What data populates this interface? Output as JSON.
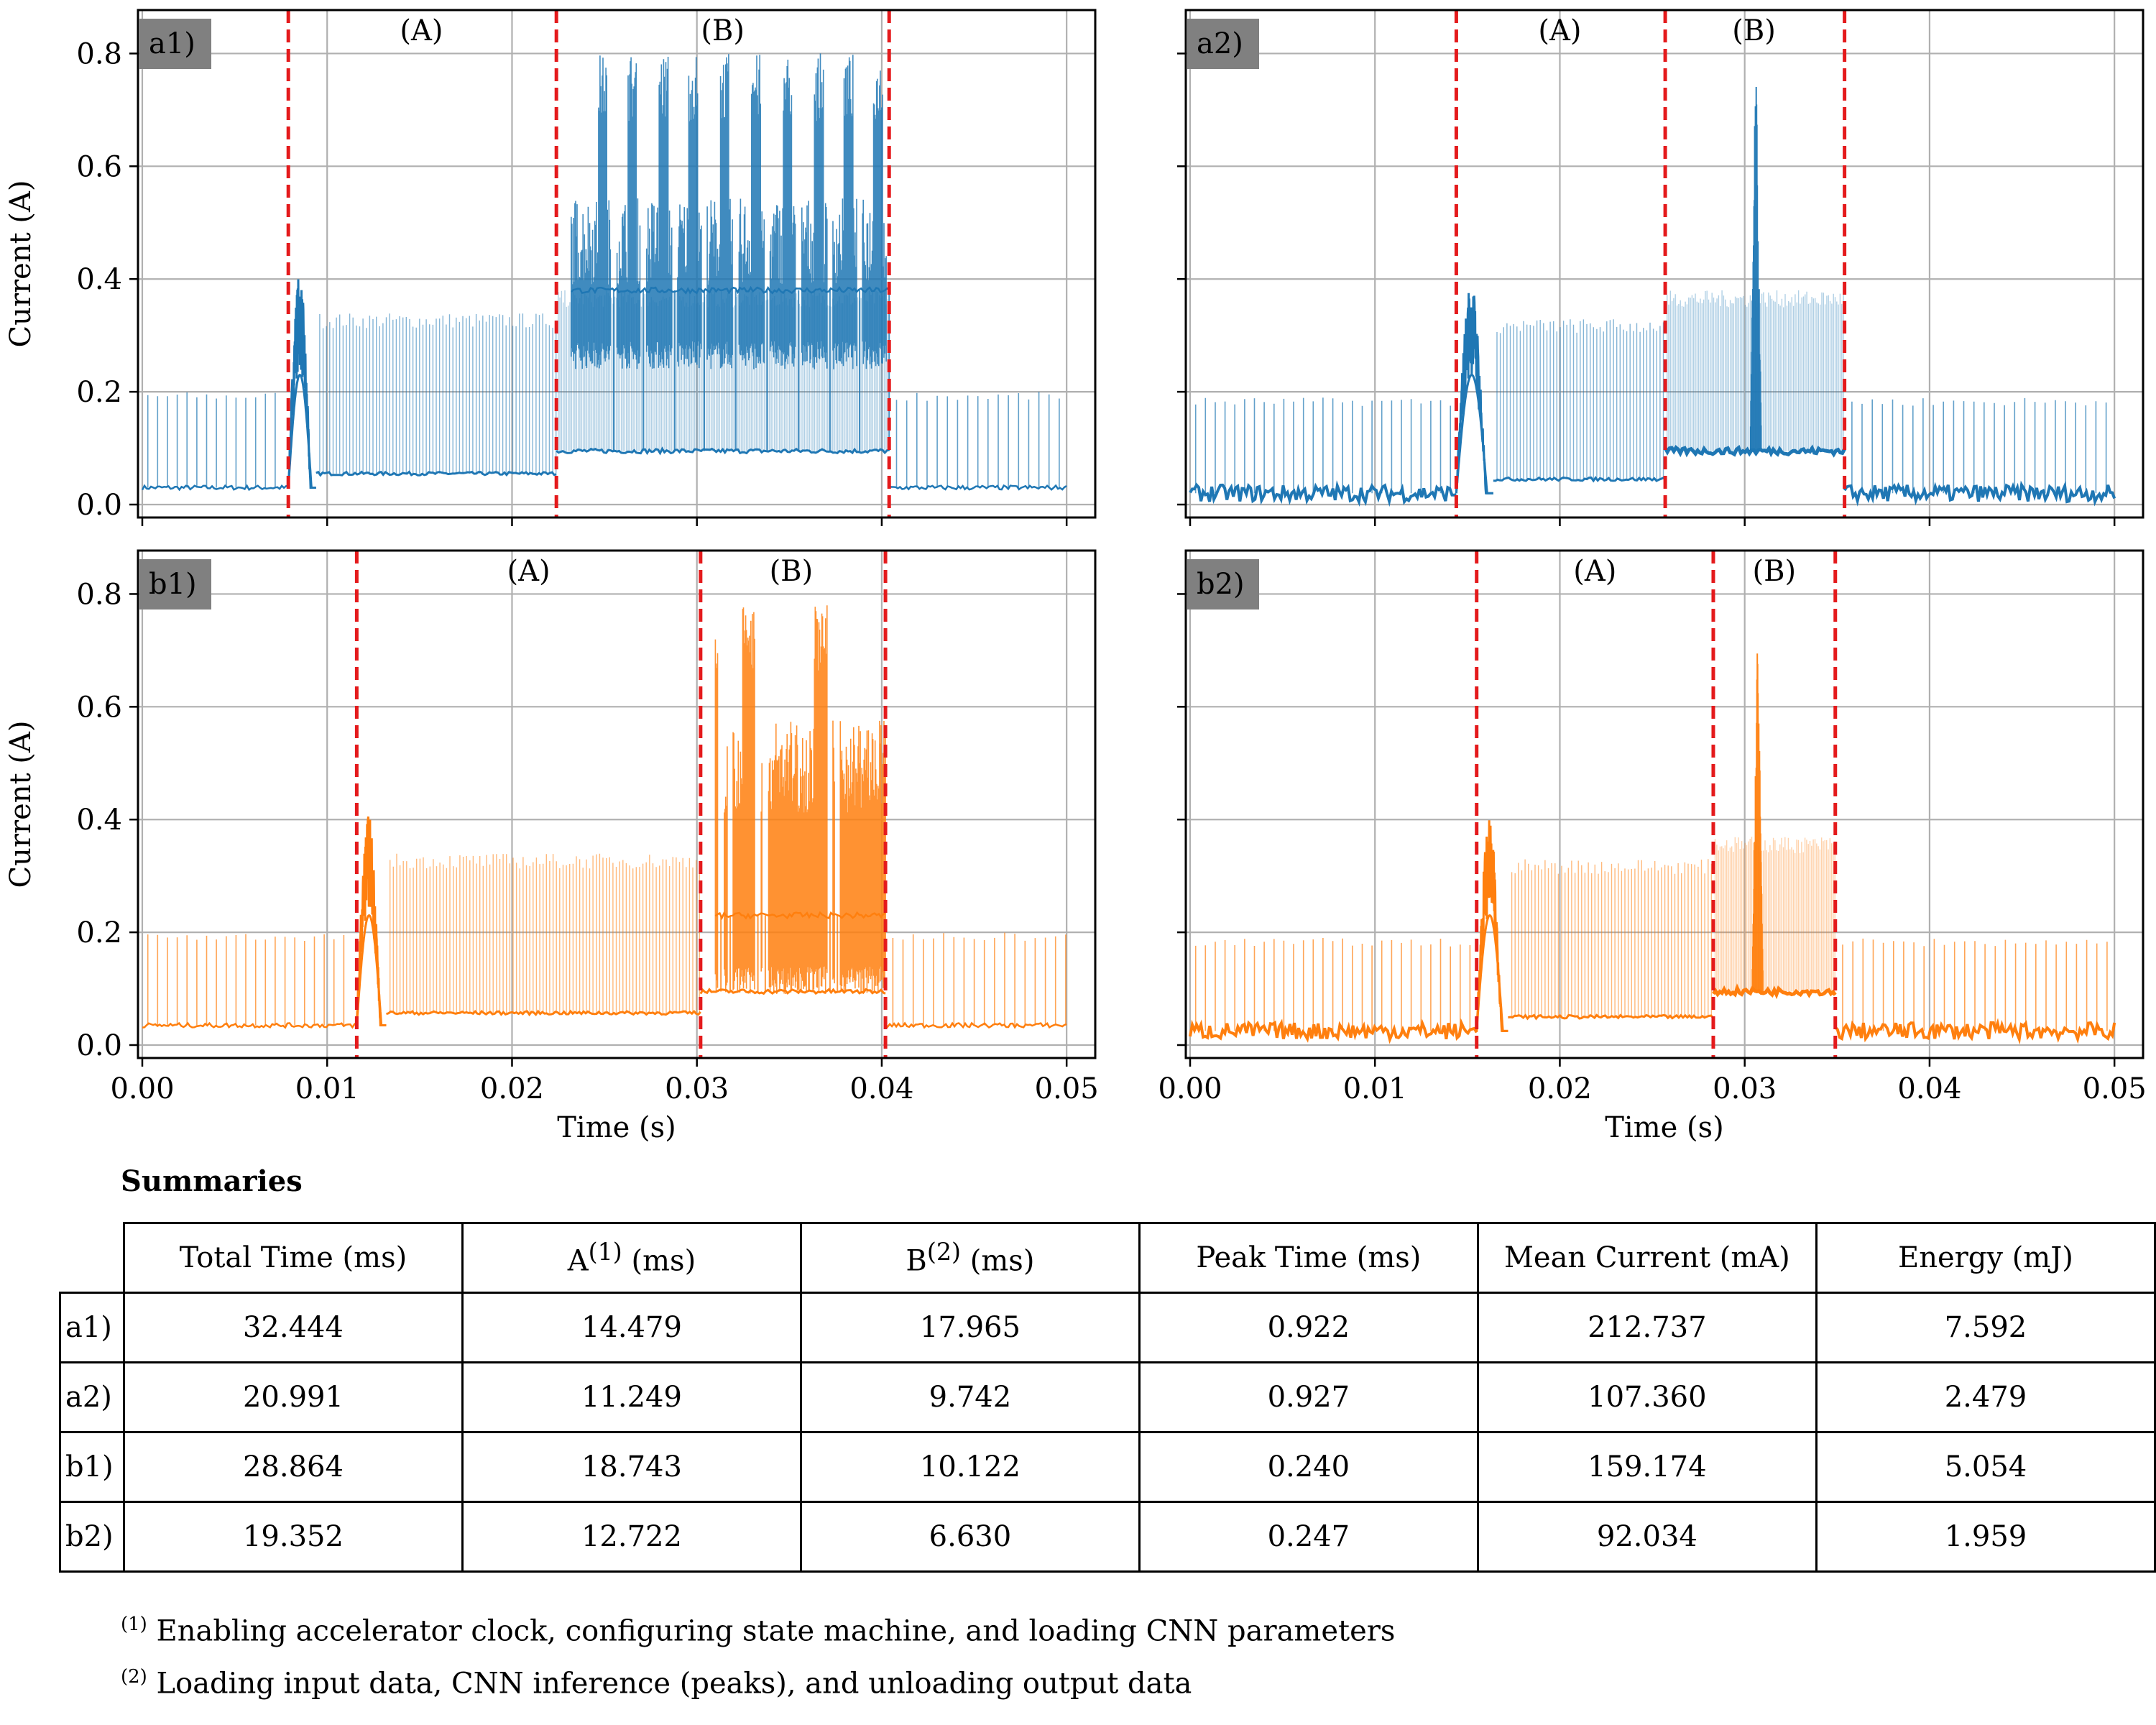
{
  "chart_data": [
    {
      "type": "line",
      "panel_label": "a1)",
      "color": "#1f77b4",
      "xlim": [
        0,
        0.05
      ],
      "ylim": [
        0,
        0.9
      ],
      "xlabel": "",
      "ylabel": "Current (A)",
      "grid": true,
      "x_ticks": [
        0.0,
        0.01,
        0.02,
        0.03,
        0.04,
        0.05
      ],
      "y_ticks": [
        0.0,
        0.2,
        0.4,
        0.6,
        0.8
      ],
      "x_tick_labels": [
        "",
        "",
        "",
        "",
        "",
        ""
      ],
      "y_tick_labels": [
        "0.0",
        "0.2",
        "0.4",
        "0.6",
        "0.8"
      ],
      "phase_boundaries": [
        0.0079,
        0.0224,
        0.0404
      ],
      "phase_labels": [
        "(A)",
        "(B)"
      ],
      "phase_label_x": [
        0.0151,
        0.0314
      ],
      "baseline": 0.03,
      "baseline_spikes": 0.2,
      "peak_time": [
        0.0079,
        0.0094
      ],
      "peak_max": 0.41,
      "a_level": 0.055,
      "a_spikes": 0.34,
      "b_style": "multi",
      "b_low": 0.095,
      "b_mid": 0.38,
      "b_burst_high": 0.52,
      "b_peak_high": 0.8,
      "b_peak_centers": [
        0.0249,
        0.0265,
        0.0282,
        0.0298,
        0.0315,
        0.0332,
        0.0349,
        0.0366,
        0.0382,
        0.0398
      ],
      "b_thin_spikes": 0.38,
      "baseline_end": 0.03
    },
    {
      "type": "line",
      "panel_label": "a2)",
      "color": "#1f77b4",
      "xlim": [
        0,
        0.05
      ],
      "ylim": [
        0,
        0.9
      ],
      "xlabel": "",
      "ylabel": "",
      "grid": true,
      "x_ticks": [
        0.0,
        0.01,
        0.02,
        0.03,
        0.04,
        0.05
      ],
      "y_ticks": [
        0.0,
        0.2,
        0.4,
        0.6,
        0.8
      ],
      "x_tick_labels": [
        "",
        "",
        "",
        "",
        "",
        ""
      ],
      "y_tick_labels": [
        "",
        "",
        "",
        "",
        "",
        ""
      ],
      "phase_boundaries": [
        0.0144,
        0.0257,
        0.0354
      ],
      "phase_labels": [
        "(A)",
        "(B)"
      ],
      "phase_label_x": [
        0.02,
        0.0305
      ],
      "baseline": 0.02,
      "baseline_spikes": 0.19,
      "peak_time": [
        0.0144,
        0.0164
      ],
      "peak_max": 0.4,
      "a_level": 0.045,
      "a_spikes": 0.33,
      "b_style": "single",
      "b_low": 0.095,
      "b_mid": 0.38,
      "b_burst_high": 0.38,
      "b_peak_high": 0.82,
      "b_peak_centers": [
        0.0306
      ],
      "b_thin_spikes": 0.38,
      "baseline_end": 0.02
    },
    {
      "type": "line",
      "panel_label": "b1)",
      "color": "#ff7f0e",
      "xlim": [
        0,
        0.05
      ],
      "ylim": [
        0,
        0.9
      ],
      "xlabel": "Time (s)",
      "ylabel": "Current (A)",
      "grid": true,
      "x_ticks": [
        0.0,
        0.01,
        0.02,
        0.03,
        0.04,
        0.05
      ],
      "y_ticks": [
        0.0,
        0.2,
        0.4,
        0.6,
        0.8
      ],
      "x_tick_labels": [
        "0.00",
        "0.01",
        "0.02",
        "0.03",
        "0.04",
        "0.05"
      ],
      "y_tick_labels": [
        "0.0",
        "0.2",
        "0.4",
        "0.6",
        "0.8"
      ],
      "phase_boundaries": [
        0.0116,
        0.0302,
        0.0402
      ],
      "phase_labels": [
        "(A)",
        "(B)"
      ],
      "phase_label_x": [
        0.0209,
        0.0351
      ],
      "baseline": 0.035,
      "baseline_spikes": 0.2,
      "peak_time": [
        0.0116,
        0.0132
      ],
      "peak_max": 0.41,
      "a_level": 0.057,
      "a_spikes": 0.34,
      "b_style": "multi",
      "b_low": 0.095,
      "b_mid": 0.23,
      "b_burst_high": 0.55,
      "b_peak_high": 0.78,
      "b_peak_centers": [
        0.0307,
        0.0312,
        0.0327,
        0.0331,
        0.0366,
        0.037
      ],
      "b_thin_spikes": 0.0,
      "baseline_end": 0.035
    },
    {
      "type": "line",
      "panel_label": "b2)",
      "color": "#ff7f0e",
      "xlim": [
        0,
        0.05
      ],
      "ylim": [
        0,
        0.9
      ],
      "xlabel": "Time (s)",
      "ylabel": "",
      "grid": true,
      "x_ticks": [
        0.0,
        0.01,
        0.02,
        0.03,
        0.04,
        0.05
      ],
      "y_ticks": [
        0.0,
        0.2,
        0.4,
        0.6,
        0.8
      ],
      "x_tick_labels": [
        "0.00",
        "0.01",
        "0.02",
        "0.03",
        "0.04",
        "0.05"
      ],
      "y_tick_labels": [
        "",
        "",
        "",
        "",
        "",
        ""
      ],
      "phase_boundaries": [
        0.0155,
        0.0283,
        0.0349
      ],
      "phase_labels": [
        "(A)",
        "(B)"
      ],
      "phase_label_x": [
        0.0219,
        0.0316
      ],
      "baseline": 0.025,
      "baseline_spikes": 0.19,
      "peak_time": [
        0.0155,
        0.0172
      ],
      "peak_max": 0.4,
      "a_level": 0.05,
      "a_spikes": 0.33,
      "b_style": "single",
      "b_low": 0.095,
      "b_mid": 0.37,
      "b_burst_high": 0.37,
      "b_peak_high": 0.76,
      "b_peak_centers": [
        0.0307
      ],
      "b_thin_spikes": 0.37,
      "baseline_end": 0.025
    }
  ],
  "summary": {
    "title": "Summaries",
    "headers": [
      "Total Time (ms)",
      "A",
      "(1)",
      " (ms)",
      "B",
      "(2)",
      " (ms)",
      "Peak Time (ms)",
      "Mean Current (mA)",
      "Energy (mJ)"
    ],
    "rows": [
      {
        "label": "a1)",
        "values": [
          "32.444",
          "14.479",
          "17.965",
          "0.922",
          "212.737",
          "7.592"
        ]
      },
      {
        "label": "a2)",
        "values": [
          "20.991",
          "11.249",
          "9.742",
          "0.927",
          "107.360",
          "2.479"
        ]
      },
      {
        "label": "b1)",
        "values": [
          "28.864",
          "18.743",
          "10.122",
          "0.240",
          "159.174",
          "5.054"
        ]
      },
      {
        "label": "b2)",
        "values": [
          "19.352",
          "12.722",
          "6.630",
          "0.247",
          "92.034",
          "1.959"
        ]
      }
    ],
    "footnote1_mark": "(1)",
    "footnote1_text": " Enabling accelerator clock, configuring state machine, and loading CNN parameters",
    "footnote2_mark": "(2)",
    "footnote2_text": " Loading input data, CNN inference (peaks), and unloading output data"
  }
}
